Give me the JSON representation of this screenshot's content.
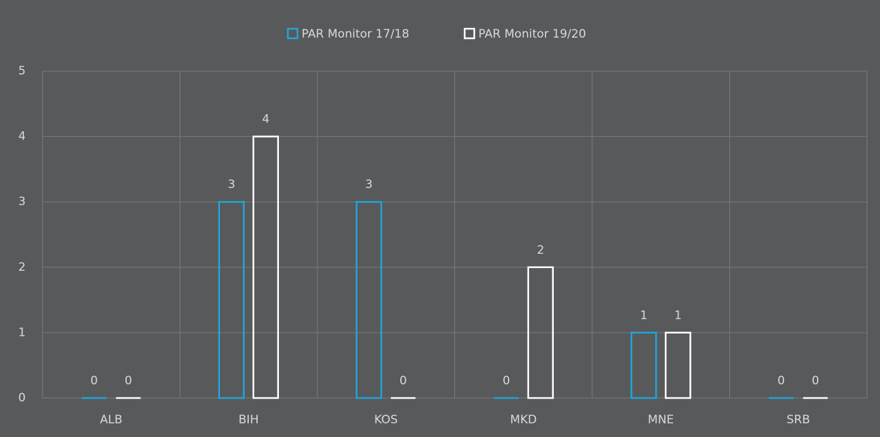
{
  "chart_data": {
    "type": "bar",
    "categories": [
      "ALB",
      "BIH",
      "KOS",
      "MKD",
      "MNE",
      "SRB"
    ],
    "series": [
      {
        "name": "PAR Monitor 17/18",
        "color": "#1ea6d9",
        "values": [
          0,
          3,
          3,
          0,
          1,
          0
        ]
      },
      {
        "name": "PAR Monitor 19/20",
        "color": "#ffffff",
        "values": [
          0,
          4,
          0,
          2,
          1,
          0
        ]
      }
    ],
    "ylim": [
      0,
      5
    ],
    "yticks": [
      0,
      1,
      2,
      3,
      4,
      5
    ],
    "grid": true,
    "legend": "top"
  }
}
